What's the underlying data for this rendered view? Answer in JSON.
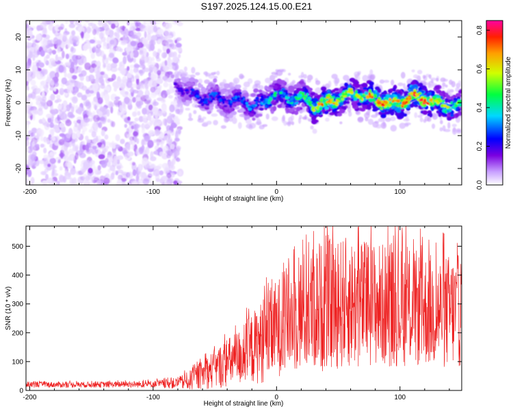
{
  "title": "S197.2025.124.15.00.E21",
  "chart_data": [
    {
      "type": "heatmap",
      "xlabel": "Height of straight line (km)",
      "ylabel": "Frequency (Hz)",
      "xlim": [
        -203,
        150
      ],
      "ylim": [
        -25,
        25
      ],
      "xticks": [
        -200,
        -100,
        0,
        100
      ],
      "yticks": [
        -20,
        -10,
        0,
        10,
        20
      ],
      "colorbar": {
        "label": "Normalized spectral amplitude",
        "range": [
          0,
          0.85
        ],
        "ticks": [
          "0.0",
          "0.2",
          "0.4",
          "0.6",
          "0.8"
        ]
      },
      "ridge_frequency": {
        "x": [
          -80,
          -70,
          -60,
          -50,
          -40,
          -30,
          -20,
          -10,
          0,
          10,
          20,
          30,
          40,
          50,
          60,
          70,
          80,
          90,
          100,
          110,
          120,
          130,
          140,
          150
        ],
        "y": [
          5,
          3,
          1,
          2,
          0,
          1,
          -1,
          0,
          3,
          1,
          2,
          -1,
          0,
          1,
          3,
          2,
          1,
          0,
          0,
          2,
          1,
          0,
          -1,
          -1
        ]
      },
      "ridge_peak_amplitude": {
        "x": [
          -80,
          -70,
          -60,
          -50,
          -40,
          -30,
          -20,
          -10,
          0,
          10,
          20,
          30,
          40,
          50,
          60,
          70,
          80,
          90,
          100,
          110,
          120,
          130,
          140,
          150
        ],
        "y": [
          0.2,
          0.25,
          0.3,
          0.3,
          0.3,
          0.3,
          0.35,
          0.4,
          0.45,
          0.4,
          0.5,
          0.6,
          0.8,
          0.6,
          0.6,
          0.6,
          0.8,
          0.8,
          0.7,
          0.8,
          0.8,
          0.6,
          0.6,
          0.5
        ]
      },
      "background_amplitude": 0.1
    },
    {
      "type": "line",
      "xlabel": "Height of straight line (km)",
      "ylabel": "SNR (10 * v/v)",
      "xlim": [
        -203,
        150
      ],
      "ylim": [
        0,
        570
      ],
      "xticks": [
        -200,
        -100,
        0,
        100
      ],
      "yticks": [
        0,
        100,
        200,
        300,
        400,
        500
      ],
      "color": "#ee2222",
      "envelope": {
        "x": [
          -203,
          -150,
          -100,
          -80,
          -70,
          -60,
          -50,
          -40,
          -30,
          -20,
          -10,
          0,
          10,
          20,
          30,
          40,
          50,
          60,
          70,
          80,
          90,
          100,
          110,
          120,
          130,
          140,
          150
        ],
        "mean": [
          20,
          20,
          22,
          25,
          35,
          55,
          75,
          95,
          115,
          145,
          175,
          215,
          250,
          270,
          285,
          295,
          300,
          305,
          300,
          300,
          295,
          290,
          285,
          280,
          275,
          275,
          275
        ],
        "spread": [
          10,
          10,
          12,
          20,
          35,
          50,
          70,
          85,
          100,
          125,
          150,
          170,
          190,
          210,
          220,
          230,
          230,
          230,
          225,
          220,
          215,
          210,
          205,
          200,
          200,
          200,
          200
        ]
      }
    }
  ]
}
